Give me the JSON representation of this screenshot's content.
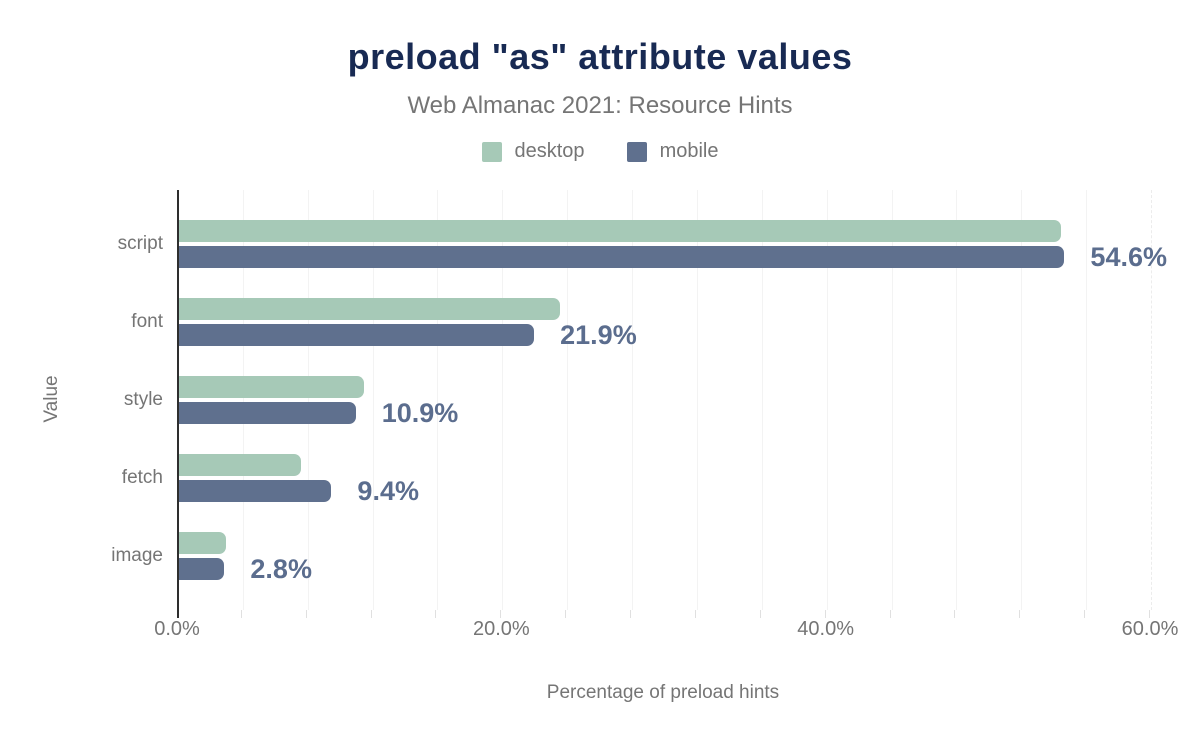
{
  "chart_data": {
    "type": "bar",
    "orientation": "horizontal",
    "title": "preload \"as\" attribute values",
    "subtitle": "Web Almanac 2021: Resource Hints",
    "xlabel": "Percentage of preload hints",
    "ylabel": "Value",
    "categories": [
      "script",
      "font",
      "style",
      "fetch",
      "image"
    ],
    "series": [
      {
        "name": "desktop",
        "color": "#a6c9b7",
        "values": [
          54.4,
          23.5,
          11.4,
          7.5,
          2.9
        ]
      },
      {
        "name": "mobile",
        "color": "#5f708e",
        "values": [
          54.6,
          21.9,
          10.9,
          9.4,
          2.8
        ]
      }
    ],
    "value_labels": [
      "54.6%",
      "21.9%",
      "10.9%",
      "9.4%",
      "2.8%"
    ],
    "value_labels_series": "mobile",
    "x_ticks": [
      {
        "value": 0,
        "label": "0.0%"
      },
      {
        "value": 20,
        "label": "20.0%"
      },
      {
        "value": 40,
        "label": "40.0%"
      },
      {
        "value": 60,
        "label": "60.0%"
      }
    ],
    "xlim": [
      0,
      60
    ],
    "minor_grid_interval": 4,
    "grid": true,
    "legend_position": "top"
  },
  "colors": {
    "title": "#182a53",
    "muted_text": "#757575",
    "value_label": "#5b6d8e",
    "axis_line": "#2e2e2e",
    "gridline": "#f3f3f3",
    "desktop": "#a6c9b7",
    "mobile": "#5f708e"
  }
}
